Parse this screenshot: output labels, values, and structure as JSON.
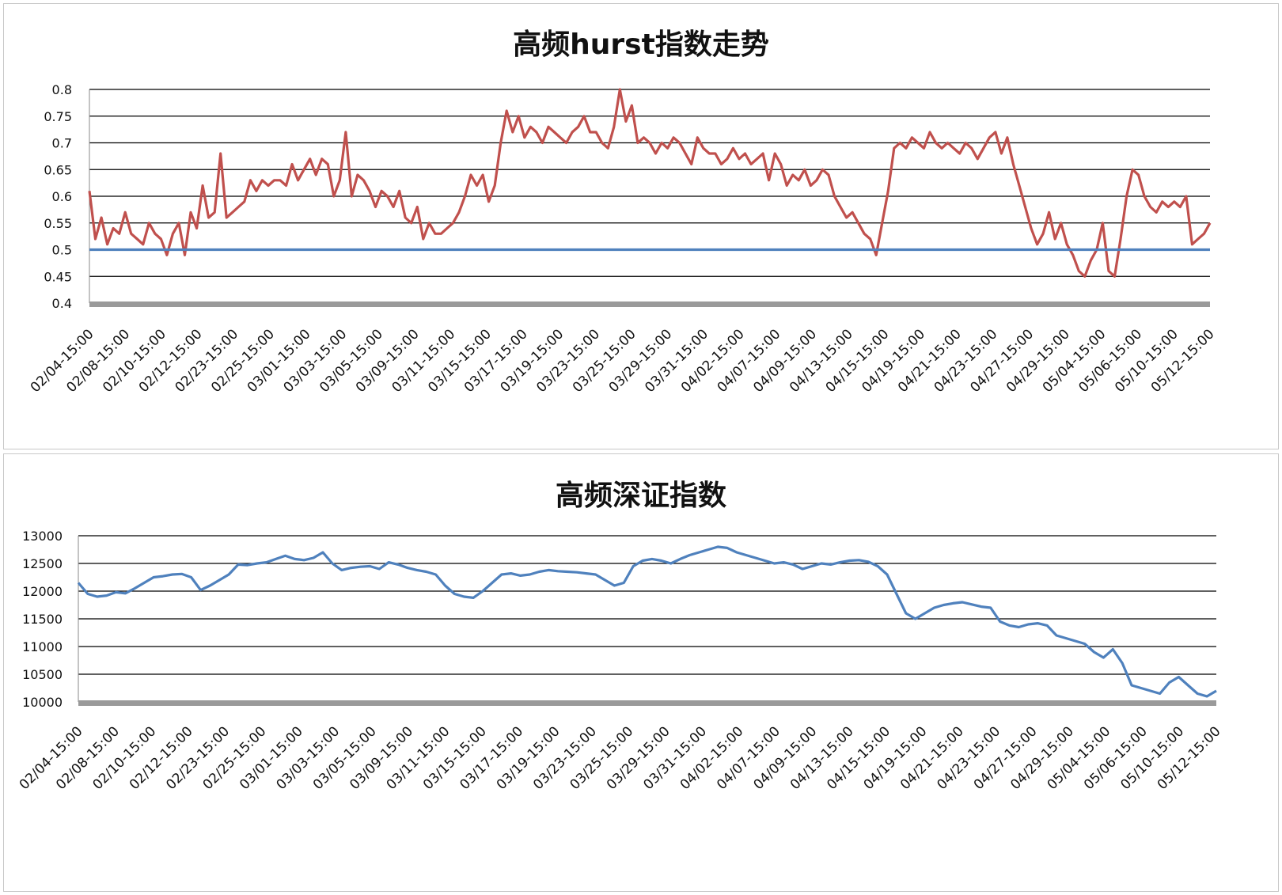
{
  "charts": {
    "hurst": {
      "title": "高频hurst指数走势",
      "chart_data": {
        "type": "line",
        "title": "高频hurst指数走势",
        "xlabel": "",
        "ylabel": "",
        "ylim": [
          0.4,
          0.8
        ],
        "yticks": [
          "0.8",
          "0.75",
          "0.7",
          "0.65",
          "0.6",
          "0.55",
          "0.5",
          "0.45",
          "0.4"
        ],
        "grid": true,
        "x_labels": [
          "02/04-15:00",
          "02/08-15:00",
          "02/10-15:00",
          "02/12-15:00",
          "02/23-15:00",
          "02/25-15:00",
          "03/01-15:00",
          "03/03-15:00",
          "03/05-15:00",
          "03/09-15:00",
          "03/11-15:00",
          "03/15-15:00",
          "03/17-15:00",
          "03/19-15:00",
          "03/23-15:00",
          "03/25-15:00",
          "03/29-15:00",
          "03/31-15:00",
          "04/02-15:00",
          "04/07-15:00",
          "04/09-15:00",
          "04/13-15:00",
          "04/15-15:00",
          "04/19-15:00",
          "04/21-15:00",
          "04/23-15:00",
          "04/27-15:00",
          "04/29-15:00",
          "05/04-15:00",
          "05/06-15:00",
          "05/10-15:00",
          "05/12-15:00"
        ],
        "series": [
          {
            "color": "#c0504d",
            "values": [
              0.61,
              0.52,
              0.56,
              0.51,
              0.54,
              0.53,
              0.57,
              0.53,
              0.52,
              0.51,
              0.55,
              0.53,
              0.52,
              0.49,
              0.53,
              0.55,
              0.49,
              0.57,
              0.54,
              0.62,
              0.56,
              0.57,
              0.68,
              0.56,
              0.57,
              0.58,
              0.59,
              0.63,
              0.61,
              0.63,
              0.62,
              0.63,
              0.63,
              0.62,
              0.66,
              0.63,
              0.65,
              0.67,
              0.64,
              0.67,
              0.66,
              0.6,
              0.63,
              0.72,
              0.6,
              0.64,
              0.63,
              0.61,
              0.58,
              0.61,
              0.6,
              0.58,
              0.61,
              0.56,
              0.55,
              0.58,
              0.52,
              0.55,
              0.53,
              0.53,
              0.54,
              0.55,
              0.57,
              0.6,
              0.64,
              0.62,
              0.64,
              0.59,
              0.62,
              0.7,
              0.76,
              0.72,
              0.75,
              0.71,
              0.73,
              0.72,
              0.7,
              0.73,
              0.72,
              0.71,
              0.7,
              0.72,
              0.73,
              0.75,
              0.72,
              0.72,
              0.7,
              0.69,
              0.73,
              0.8,
              0.74,
              0.77,
              0.7,
              0.71,
              0.7,
              0.68,
              0.7,
              0.69,
              0.71,
              0.7,
              0.68,
              0.66,
              0.71,
              0.69,
              0.68,
              0.68,
              0.66,
              0.67,
              0.69,
              0.67,
              0.68,
              0.66,
              0.67,
              0.68,
              0.63,
              0.68,
              0.66,
              0.62,
              0.64,
              0.63,
              0.65,
              0.62,
              0.63,
              0.65,
              0.64,
              0.6,
              0.58,
              0.56,
              0.57,
              0.55,
              0.53,
              0.52,
              0.49,
              0.55,
              0.61,
              0.69,
              0.7,
              0.69,
              0.71,
              0.7,
              0.69,
              0.72,
              0.7,
              0.69,
              0.7,
              0.69,
              0.68,
              0.7,
              0.69,
              0.67,
              0.69,
              0.71,
              0.72,
              0.68,
              0.71,
              0.66,
              0.62,
              0.58,
              0.54,
              0.51,
              0.53,
              0.57,
              0.52,
              0.55,
              0.51,
              0.49,
              0.46,
              0.45,
              0.48,
              0.5,
              0.55,
              0.46,
              0.45,
              0.52,
              0.6,
              0.65,
              0.64,
              0.6,
              0.58,
              0.57,
              0.59,
              0.58,
              0.59,
              0.58,
              0.6,
              0.51,
              0.52,
              0.53,
              0.55
            ]
          },
          {
            "color": "#4f81bd",
            "values": [
              0.5,
              0.5
            ]
          }
        ]
      }
    },
    "szindex": {
      "title": "高频深证指数",
      "chart_data": {
        "type": "line",
        "title": "高频深证指数",
        "xlabel": "",
        "ylabel": "",
        "ylim": [
          10000,
          13000
        ],
        "yticks": [
          "13000",
          "12500",
          "12000",
          "11500",
          "11000",
          "10500",
          "10000"
        ],
        "grid": true,
        "x_labels": [
          "02/04-15:00",
          "02/08-15:00",
          "02/10-15:00",
          "02/12-15:00",
          "02/23-15:00",
          "02/25-15:00",
          "03/01-15:00",
          "03/03-15:00",
          "03/05-15:00",
          "03/09-15:00",
          "03/11-15:00",
          "03/15-15:00",
          "03/17-15:00",
          "03/19-15:00",
          "03/23-15:00",
          "03/25-15:00",
          "03/29-15:00",
          "03/31-15:00",
          "04/02-15:00",
          "04/07-15:00",
          "04/09-15:00",
          "04/13-15:00",
          "04/15-15:00",
          "04/19-15:00",
          "04/21-15:00",
          "04/23-15:00",
          "04/27-15:00",
          "04/29-15:00",
          "05/04-15:00",
          "05/06-15:00",
          "05/10-15:00",
          "05/12-15:00"
        ],
        "series": [
          {
            "color": "#4f81bd",
            "values": [
              12150,
              11950,
              11900,
              11920,
              11980,
              11960,
              12050,
              12150,
              12250,
              12270,
              12300,
              12310,
              12250,
              12020,
              12100,
              12200,
              12300,
              12480,
              12470,
              12500,
              12520,
              12580,
              12640,
              12580,
              12560,
              12600,
              12700,
              12500,
              12380,
              12420,
              12440,
              12450,
              12400,
              12520,
              12480,
              12420,
              12380,
              12350,
              12300,
              12100,
              11950,
              11900,
              11880,
              12000,
              12150,
              12300,
              12320,
              12280,
              12300,
              12350,
              12380,
              12360,
              12350,
              12340,
              12320,
              12300,
              12200,
              12100,
              12150,
              12450,
              12550,
              12580,
              12550,
              12500,
              12580,
              12650,
              12700,
              12750,
              12800,
              12780,
              12700,
              12650,
              12600,
              12550,
              12500,
              12520,
              12480,
              12400,
              12450,
              12500,
              12480,
              12520,
              12550,
              12560,
              12530,
              12450,
              12300,
              11950,
              11600,
              11500,
              11600,
              11700,
              11750,
              11780,
              11800,
              11760,
              11720,
              11700,
              11450,
              11380,
              11350,
              11400,
              11420,
              11380,
              11200,
              11150,
              11100,
              11050,
              10900,
              10800,
              10950,
              10700,
              10300,
              10250,
              10200,
              10150,
              10350,
              10450,
              10300,
              10150,
              10100,
              10200
            ]
          }
        ]
      }
    }
  }
}
